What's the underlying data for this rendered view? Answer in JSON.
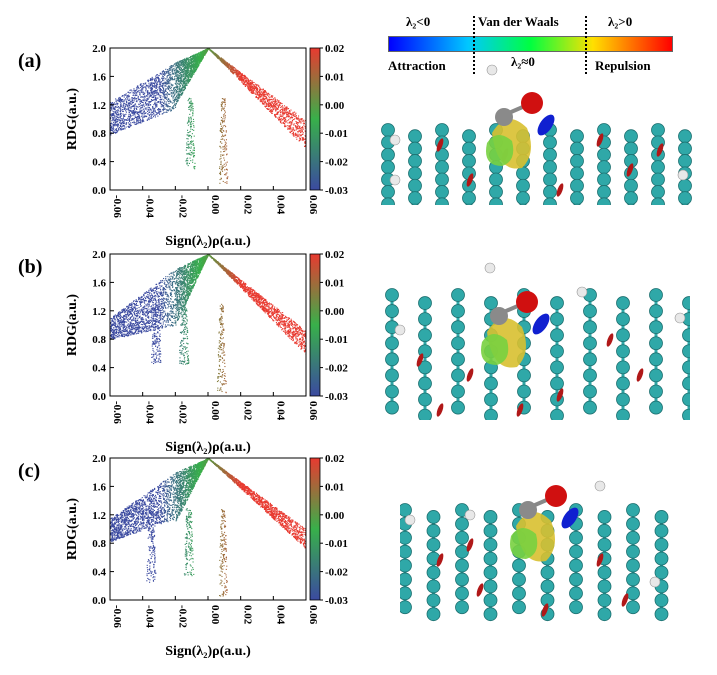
{
  "panels": [
    {
      "label": "(a)",
      "xlabel": "Sign(λ₂)ρ(a.u.)",
      "ylabel": "RDG(a.u.)"
    },
    {
      "label": "(b)",
      "xlabel": "Sign(λ₂)ρ(a.u.)",
      "ylabel": "RDG(a.u.)"
    },
    {
      "label": "(c)",
      "xlabel": "Sign(λ₂)ρ(a.u.)",
      "ylabel": "RDG(a.u.)"
    }
  ],
  "legend": {
    "left_title": "λ₂<0",
    "center_title": "Van der Waals",
    "right_title": "λ₂>0",
    "left_caption": "Attraction",
    "center_caption": "λ₂≈0",
    "right_caption": "Repulsion",
    "gradient_colors": [
      "#0000ff",
      "#00c8ff",
      "#00ff40",
      "#ffe000",
      "#ff0000"
    ]
  },
  "chart_data": [
    {
      "type": "scatter",
      "title": "",
      "xlabel": "Sign(λ₂)ρ(a.u.)",
      "ylabel": "RDG(a.u.)",
      "xlim": [
        -0.06,
        0.06
      ],
      "ylim": [
        0.0,
        2.0
      ],
      "x_ticks": [
        "-0.06",
        "-0.04",
        "-0.02",
        "0.00",
        "0.02",
        "0.04",
        "0.06"
      ],
      "y_ticks": [
        "0.0",
        "0.4",
        "0.8",
        "1.2",
        "1.6",
        "2.0"
      ],
      "colorbar": {
        "range": [
          -0.03,
          0.02
        ],
        "ticks": [
          "0.02",
          "0.01",
          "0.00",
          "-0.01",
          "-0.02",
          "-0.03"
        ],
        "colors": [
          "#3b4aa0",
          "#38b04a",
          "#e83a30"
        ]
      },
      "branches": [
        {
          "color_region": "blue",
          "x_range": [
            -0.06,
            -0.02
          ],
          "rdg_at_x_min": [
            0.78,
            1.25
          ],
          "rdg_at_x_max": [
            1.15,
            1.8
          ]
        },
        {
          "color_region": "green",
          "x_range": [
            -0.02,
            0.0
          ],
          "rdg_at_x_min": [
            1.2,
            1.8
          ],
          "rdg_at_x_max": [
            2.0,
            2.0
          ]
        },
        {
          "color_region": "red",
          "x_range": [
            0.0,
            0.06
          ],
          "rdg_at_x_min": [
            2.0,
            2.0
          ],
          "rdg_at_x_max": [
            0.58,
            0.98
          ]
        }
      ],
      "spikes": [
        {
          "x": -0.011,
          "rdg_min": 0.3
        },
        {
          "x": 0.009,
          "rdg_min": 0.1
        }
      ]
    },
    {
      "type": "scatter",
      "title": "",
      "xlabel": "Sign(λ₂)ρ(a.u.)",
      "ylabel": "RDG(a.u.)",
      "xlim": [
        -0.06,
        0.06
      ],
      "ylim": [
        0.0,
        2.0
      ],
      "x_ticks": [
        "-0.06",
        "-0.04",
        "-0.02",
        "0.00",
        "0.02",
        "0.04",
        "0.06"
      ],
      "y_ticks": [
        "0.0",
        "0.4",
        "0.8",
        "1.2",
        "1.6",
        "2.0"
      ],
      "colorbar": {
        "range": [
          -0.03,
          0.02
        ],
        "ticks": [
          "0.02",
          "0.01",
          "0.00",
          "-0.01",
          "-0.02",
          "-0.03"
        ],
        "colors": [
          "#3b4aa0",
          "#38b04a",
          "#e83a30"
        ]
      },
      "branches": [
        {
          "color_region": "blue",
          "x_range": [
            -0.06,
            -0.02
          ],
          "rdg_at_x_min": [
            0.8,
            1.1
          ],
          "rdg_at_x_max": [
            1.0,
            1.8
          ]
        },
        {
          "color_region": "green",
          "x_range": [
            -0.02,
            0.0
          ],
          "rdg_at_x_min": [
            1.0,
            1.8
          ],
          "rdg_at_x_max": [
            2.0,
            2.0
          ]
        },
        {
          "color_region": "red",
          "x_range": [
            0.0,
            0.06
          ],
          "rdg_at_x_min": [
            2.0,
            2.0
          ],
          "rdg_at_x_max": [
            0.58,
            0.92
          ]
        }
      ],
      "spikes": [
        {
          "x": -0.032,
          "rdg_min": 0.45
        },
        {
          "x": -0.015,
          "rdg_min": 0.45
        },
        {
          "x": 0.008,
          "rdg_min": 0.05
        }
      ]
    },
    {
      "type": "scatter",
      "title": "",
      "xlabel": "Sign(λ₂)ρ(a.u.)",
      "ylabel": "RDG(a.u.)",
      "xlim": [
        -0.06,
        0.06
      ],
      "ylim": [
        0.0,
        2.0
      ],
      "x_ticks": [
        "-0.06",
        "-0.04",
        "-0.02",
        "0.00",
        "0.02",
        "0.04",
        "0.06"
      ],
      "y_ticks": [
        "0.0",
        "0.4",
        "0.8",
        "1.2",
        "1.6",
        "2.0"
      ],
      "colorbar": {
        "range": [
          -0.03,
          0.02
        ],
        "ticks": [
          "0.02",
          "0.01",
          "0.00",
          "-0.01",
          "-0.02",
          "-0.03"
        ],
        "colors": [
          "#3b4aa0",
          "#38b04a",
          "#e83a30"
        ]
      },
      "branches": [
        {
          "color_region": "blue",
          "x_range": [
            -0.06,
            -0.02
          ],
          "rdg_at_x_min": [
            0.82,
            1.15
          ],
          "rdg_at_x_max": [
            1.15,
            1.8
          ]
        },
        {
          "color_region": "green",
          "x_range": [
            -0.02,
            0.0
          ],
          "rdg_at_x_min": [
            1.1,
            1.8
          ],
          "rdg_at_x_max": [
            2.0,
            2.0
          ]
        },
        {
          "color_region": "red",
          "x_range": [
            0.0,
            0.06
          ],
          "rdg_at_x_min": [
            2.0,
            2.0
          ],
          "rdg_at_x_max": [
            0.72,
            1.0
          ]
        }
      ],
      "spikes": [
        {
          "x": -0.035,
          "rdg_min": 0.25
        },
        {
          "x": -0.012,
          "rdg_min": 0.35
        },
        {
          "x": 0.009,
          "rdg_min": 0.05
        }
      ]
    }
  ],
  "molecule_colors": {
    "carbon": "#2fa8a8",
    "oxygen": "#d01010",
    "hydrogen": "#e8e8e8",
    "isosurface_green": "#78d040",
    "isosurface_yellow": "#d8c030",
    "isosurface_red": "#b01818",
    "isosurface_blue": "#1020d0"
  }
}
